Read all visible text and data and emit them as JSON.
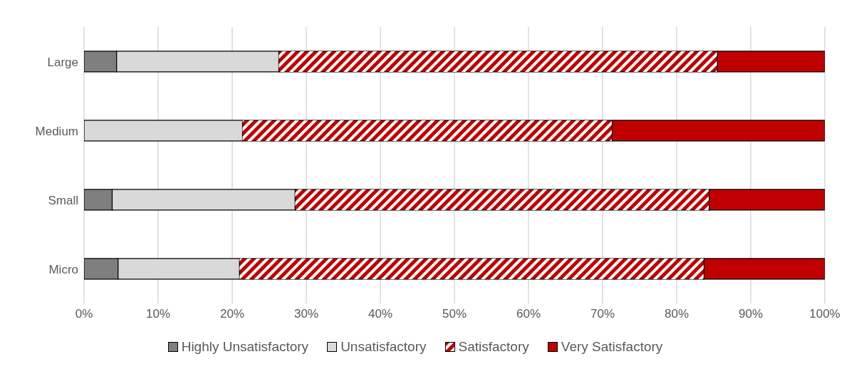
{
  "chart_data": {
    "type": "bar",
    "orientation": "horizontal",
    "stacked": true,
    "categories": [
      "Large",
      "Medium",
      "Small",
      "Micro"
    ],
    "series": [
      {
        "name": "Highly Unsatisfactory",
        "color": "#7f7f7f",
        "values": [
          4.4,
          0,
          3.8,
          4.6
        ]
      },
      {
        "name": "Unsatisfactory",
        "color": "#d9d9d9",
        "values": [
          21.9,
          21.4,
          24.7,
          16.4
        ]
      },
      {
        "name": "Satisfactory",
        "color": "#c00000",
        "values": [
          59.2,
          49.9,
          55.9,
          62.7
        ]
      },
      {
        "name": "Very Satisfactory",
        "color": "#c00000",
        "values": [
          14.5,
          28.7,
          15.6,
          16.3
        ]
      }
    ],
    "xlim": [
      0,
      100
    ],
    "xticks": [
      {
        "value": 0,
        "label": "0%"
      },
      {
        "value": 10,
        "label": "10%"
      },
      {
        "value": 20,
        "label": "20%"
      },
      {
        "value": 30,
        "label": "30%"
      },
      {
        "value": 40,
        "label": "40%"
      },
      {
        "value": 50,
        "label": "50%"
      },
      {
        "value": 60,
        "label": "60%"
      },
      {
        "value": 70,
        "label": "70%"
      },
      {
        "value": 80,
        "label": "80%"
      },
      {
        "value": 90,
        "label": "90%"
      },
      {
        "value": 100,
        "label": "100%"
      }
    ],
    "grid": "x",
    "legend": "bottom"
  }
}
